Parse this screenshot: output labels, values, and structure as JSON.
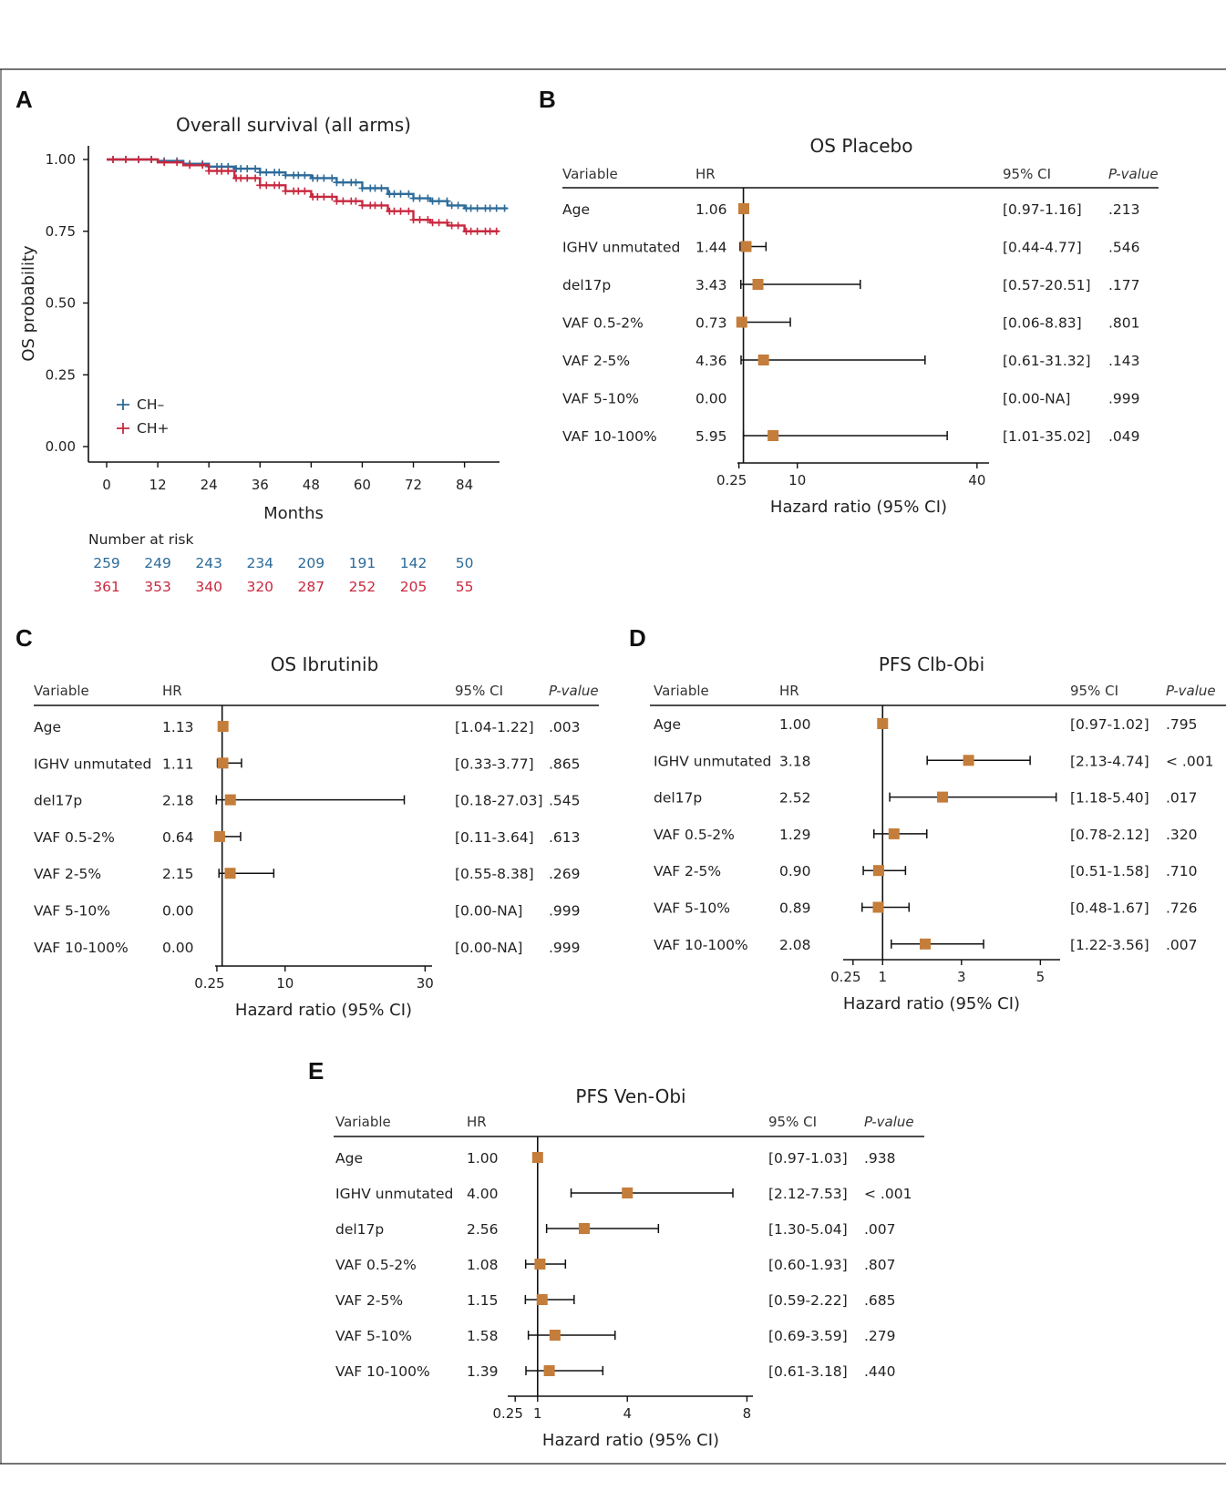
{
  "panel_letters": {
    "A": "A",
    "B": "B",
    "C": "C",
    "D": "D",
    "E": "E"
  },
  "colors": {
    "ch_minus": "#2d6b99",
    "ch_plus": "#c8283f",
    "marker": "#c47d3a",
    "line": "#111111"
  },
  "table_headers": {
    "variable": "Variable",
    "hr": "HR",
    "ci": "95% CI",
    "p": "P-value"
  },
  "chart_data": [
    {
      "id": "A",
      "type": "line",
      "title": "Overall survival (all arms)",
      "xlabel": "Months",
      "ylabel": "OS probability",
      "xlim": [
        0,
        92
      ],
      "ylim": [
        0,
        1.05
      ],
      "x_ticks": [
        "0",
        "12",
        "24",
        "36",
        "48",
        "60",
        "72",
        "84"
      ],
      "x_tick_values": [
        0,
        12,
        24,
        36,
        48,
        60,
        72,
        84
      ],
      "y_ticks": [
        "0.00",
        "0.25",
        "0.50",
        "0.75",
        "1.00"
      ],
      "y_tick_values": [
        0,
        0.25,
        0.5,
        0.75,
        1.0
      ],
      "legend": [
        "CH–",
        "CH+"
      ],
      "legend_position": "bottom-left",
      "series": [
        {
          "name": "CH–",
          "x": [
            0,
            6,
            12,
            18,
            24,
            30,
            36,
            42,
            48,
            54,
            60,
            66,
            72,
            76,
            80,
            84,
            88,
            94
          ],
          "y": [
            1.0,
            1.0,
            0.995,
            0.985,
            0.975,
            0.968,
            0.955,
            0.945,
            0.935,
            0.92,
            0.9,
            0.88,
            0.865,
            0.855,
            0.84,
            0.83,
            0.83,
            0.83
          ]
        },
        {
          "name": "CH+",
          "x": [
            0,
            6,
            12,
            18,
            24,
            30,
            36,
            42,
            48,
            54,
            60,
            66,
            72,
            76,
            80,
            84,
            88,
            92
          ],
          "y": [
            1.0,
            1.0,
            0.99,
            0.98,
            0.96,
            0.935,
            0.91,
            0.89,
            0.87,
            0.855,
            0.84,
            0.82,
            0.79,
            0.78,
            0.77,
            0.75,
            0.75,
            0.75
          ]
        }
      ],
      "risk_table": {
        "title": "Number at risk",
        "times": [
          0,
          12,
          24,
          36,
          48,
          60,
          72,
          84
        ],
        "rows": [
          {
            "name": "CH–",
            "values": [
              "259",
              "249",
              "243",
              "234",
              "209",
              "191",
              "142",
              "50"
            ]
          },
          {
            "name": "CH+",
            "values": [
              "361",
              "353",
              "340",
              "320",
              "287",
              "252",
              "205",
              "55"
            ]
          }
        ]
      }
    },
    {
      "id": "B",
      "type": "forest",
      "title": "OS Placebo",
      "xlabel": "Hazard ratio (95% CI)",
      "xlim": [
        0,
        42
      ],
      "ref_value": 1,
      "x_ticks": [
        "0.25",
        "10",
        "40"
      ],
      "x_tick_values": [
        0.25,
        10,
        40
      ],
      "rows": [
        {
          "variable": "Age",
          "hr": "1.06",
          "ci": "[0.97-1.16]",
          "p": ".213",
          "est": 1.06,
          "lo": 0.97,
          "hi": 1.16
        },
        {
          "variable": "IGHV unmutated",
          "hr": "1.44",
          "ci": "[0.44-4.77]",
          "p": ".546",
          "est": 1.44,
          "lo": 0.44,
          "hi": 4.77
        },
        {
          "variable": "del17p",
          "hr": "3.43",
          "ci": "[0.57-20.51]",
          "p": ".177",
          "est": 3.43,
          "lo": 0.57,
          "hi": 20.51
        },
        {
          "variable": "VAF 0.5-2%",
          "hr": "0.73",
          "ci": "[0.06-8.83]",
          "p": ".801",
          "est": 0.73,
          "lo": 0.06,
          "hi": 8.83
        },
        {
          "variable": "VAF 2-5%",
          "hr": "4.36",
          "ci": "[0.61-31.32]",
          "p": ".143",
          "est": 4.36,
          "lo": 0.61,
          "hi": 31.32
        },
        {
          "variable": "VAF 5-10%",
          "hr": "0.00",
          "ci": "[0.00-NA]",
          "p": ".999",
          "est": null,
          "lo": null,
          "hi": null
        },
        {
          "variable": "VAF 10-100%",
          "hr": "5.95",
          "ci": "[1.01-35.02]",
          "p": ".049",
          "est": 5.95,
          "lo": 1.01,
          "hi": 35.02
        }
      ]
    },
    {
      "id": "C",
      "type": "forest",
      "title": "OS Ibrutinib",
      "xlabel": "Hazard ratio (95% CI)",
      "xlim": [
        0,
        31
      ],
      "ref_value": 1,
      "x_ticks": [
        "0.25",
        "10",
        "30"
      ],
      "x_tick_values": [
        0.25,
        10,
        30
      ],
      "rows": [
        {
          "variable": "Age",
          "hr": "1.13",
          "ci": "[1.04-1.22]",
          "p": ".003",
          "est": 1.13,
          "lo": 1.04,
          "hi": 1.22
        },
        {
          "variable": "IGHV unmutated",
          "hr": "1.11",
          "ci": "[0.33-3.77]",
          "p": ".865",
          "est": 1.11,
          "lo": 0.33,
          "hi": 3.77
        },
        {
          "variable": "del17p",
          "hr": "2.18",
          "ci": "[0.18-27.03]",
          "p": ".545",
          "est": 2.18,
          "lo": 0.18,
          "hi": 27.03
        },
        {
          "variable": "VAF 0.5-2%",
          "hr": "0.64",
          "ci": "[0.11-3.64]",
          "p": ".613",
          "est": 0.64,
          "lo": 0.11,
          "hi": 3.64
        },
        {
          "variable": "VAF 2-5%",
          "hr": "2.15",
          "ci": "[0.55-8.38]",
          "p": ".269",
          "est": 2.15,
          "lo": 0.55,
          "hi": 8.38
        },
        {
          "variable": "VAF 5-10%",
          "hr": "0.00",
          "ci": "[0.00-NA]",
          "p": ".999",
          "est": null,
          "lo": null,
          "hi": null
        },
        {
          "variable": "VAF 10-100%",
          "hr": "0.00",
          "ci": "[0.00-NA]",
          "p": ".999",
          "est": null,
          "lo": null,
          "hi": null
        }
      ]
    },
    {
      "id": "D",
      "type": "forest",
      "title": "PFS Clb-Obi",
      "xlabel": "Hazard ratio (95% CI)",
      "xlim": [
        0,
        5.5
      ],
      "ref_value": 1,
      "x_ticks": [
        "0.25",
        "1",
        "3",
        "5"
      ],
      "x_tick_values": [
        0.25,
        1,
        3,
        5
      ],
      "rows": [
        {
          "variable": "Age",
          "hr": "1.00",
          "ci": "[0.97-1.02]",
          "p": ".795",
          "est": 1.0,
          "lo": 0.97,
          "hi": 1.02
        },
        {
          "variable": "IGHV unmutated",
          "hr": "3.18",
          "ci": "[2.13-4.74]",
          "p": "< .001",
          "est": 3.18,
          "lo": 2.13,
          "hi": 4.74
        },
        {
          "variable": "del17p",
          "hr": "2.52",
          "ci": "[1.18-5.40]",
          "p": ".017",
          "est": 2.52,
          "lo": 1.18,
          "hi": 5.4
        },
        {
          "variable": "VAF 0.5-2%",
          "hr": "1.29",
          "ci": "[0.78-2.12]",
          "p": ".320",
          "est": 1.29,
          "lo": 0.78,
          "hi": 2.12
        },
        {
          "variable": "VAF 2-5%",
          "hr": "0.90",
          "ci": "[0.51-1.58]",
          "p": ".710",
          "est": 0.9,
          "lo": 0.51,
          "hi": 1.58
        },
        {
          "variable": "VAF 5-10%",
          "hr": "0.89",
          "ci": "[0.48-1.67]",
          "p": ".726",
          "est": 0.89,
          "lo": 0.48,
          "hi": 1.67
        },
        {
          "variable": "VAF 10-100%",
          "hr": "2.08",
          "ci": "[1.22-3.56]",
          "p": ".007",
          "est": 2.08,
          "lo": 1.22,
          "hi": 3.56
        }
      ]
    },
    {
      "id": "E",
      "type": "forest",
      "title": "PFS Ven-Obi",
      "xlabel": "Hazard ratio (95% CI)",
      "xlim": [
        0,
        8.2
      ],
      "ref_value": 1,
      "x_ticks": [
        "0.25",
        "1",
        "4",
        "8"
      ],
      "x_tick_values": [
        0.25,
        1,
        4,
        8
      ],
      "rows": [
        {
          "variable": "Age",
          "hr": "1.00",
          "ci": "[0.97-1.03]",
          "p": ".938",
          "est": 1.0,
          "lo": 0.97,
          "hi": 1.03
        },
        {
          "variable": "IGHV unmutated",
          "hr": "4.00",
          "ci": "[2.12-7.53]",
          "p": "< .001",
          "est": 4.0,
          "lo": 2.12,
          "hi": 7.53
        },
        {
          "variable": "del17p",
          "hr": "2.56",
          "ci": "[1.30-5.04]",
          "p": ".007",
          "est": 2.56,
          "lo": 1.3,
          "hi": 5.04
        },
        {
          "variable": "VAF 0.5-2%",
          "hr": "1.08",
          "ci": "[0.60-1.93]",
          "p": ".807",
          "est": 1.08,
          "lo": 0.6,
          "hi": 1.93
        },
        {
          "variable": "VAF 2-5%",
          "hr": "1.15",
          "ci": "[0.59-2.22]",
          "p": ".685",
          "est": 1.15,
          "lo": 0.59,
          "hi": 2.22
        },
        {
          "variable": "VAF 5-10%",
          "hr": "1.58",
          "ci": "[0.69-3.59]",
          "p": ".279",
          "est": 1.58,
          "lo": 0.69,
          "hi": 3.59
        },
        {
          "variable": "VAF 10-100%",
          "hr": "1.39",
          "ci": "[0.61-3.18]",
          "p": ".440",
          "est": 1.39,
          "lo": 0.61,
          "hi": 3.18
        }
      ]
    }
  ]
}
